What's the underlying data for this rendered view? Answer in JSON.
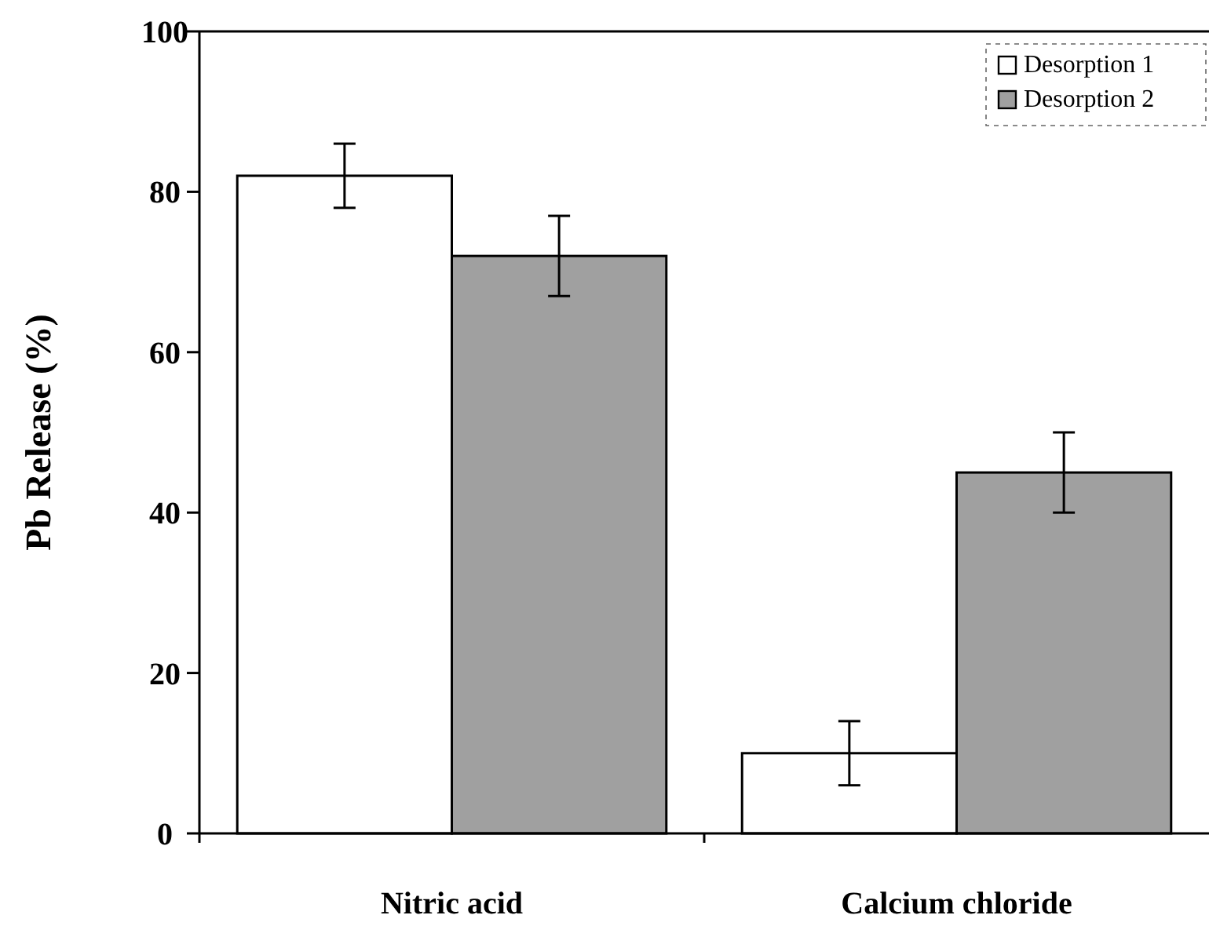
{
  "chart_data": {
    "type": "bar",
    "ylabel": "Pb Release (%)",
    "categories": [
      "Nitric acid",
      "Calcium chloride"
    ],
    "series": [
      {
        "name": "Desorption 1",
        "color": "#ffffff",
        "values": [
          82,
          10
        ],
        "errors": [
          4,
          4
        ]
      },
      {
        "name": "Desorption 2",
        "color": "#a0a0a0",
        "values": [
          72,
          45
        ],
        "errors": [
          5,
          5
        ]
      }
    ],
    "ylim": [
      0,
      100
    ],
    "yticks": [
      0,
      20,
      40,
      60,
      80,
      100
    ],
    "legend": "top right",
    "grid": false
  }
}
